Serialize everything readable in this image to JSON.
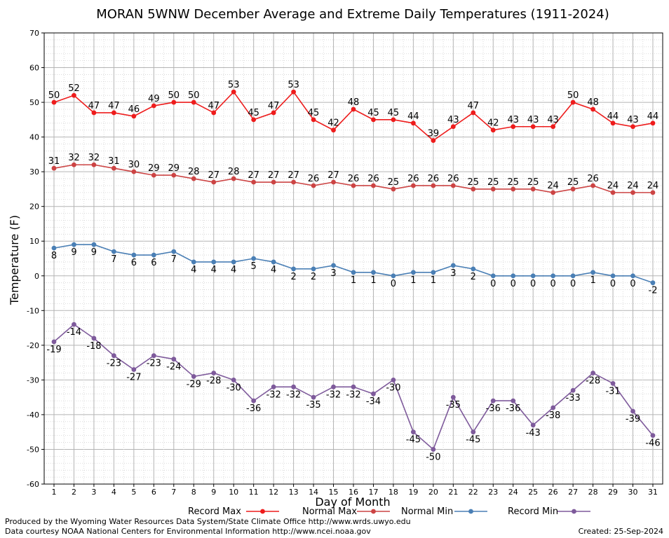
{
  "chart_data": {
    "type": "line",
    "title": "MORAN 5WNW December Average and Extreme Daily Temperatures (1911-2024)",
    "xlabel": "Day of Month",
    "ylabel": "Temperature (F)",
    "ylim": [
      -60,
      70
    ],
    "yticks": [
      -60,
      -50,
      -40,
      -30,
      -20,
      -10,
      0,
      10,
      20,
      30,
      40,
      50,
      60,
      70
    ],
    "x": [
      1,
      2,
      3,
      4,
      5,
      6,
      7,
      8,
      9,
      10,
      11,
      12,
      13,
      14,
      15,
      16,
      17,
      18,
      19,
      20,
      21,
      22,
      23,
      24,
      25,
      26,
      27,
      28,
      29,
      30,
      31
    ],
    "grid": true,
    "legend": "bottom",
    "series": [
      {
        "name": "Record Max",
        "color": "#ee1c1c",
        "label_pos": "above",
        "values": [
          50,
          52,
          47,
          47,
          46,
          49,
          50,
          50,
          47,
          53,
          45,
          47,
          53,
          45,
          42,
          48,
          45,
          45,
          44,
          39,
          43,
          47,
          42,
          43,
          43,
          43,
          50,
          48,
          44,
          43,
          44
        ]
      },
      {
        "name": "Normal Max",
        "color": "#cc4444",
        "label_pos": "above",
        "values": [
          31,
          32,
          32,
          31,
          30,
          29,
          29,
          28,
          27,
          28,
          27,
          27,
          27,
          26,
          27,
          26,
          26,
          25,
          26,
          26,
          26,
          25,
          25,
          25,
          25,
          24,
          25,
          26,
          24,
          24,
          24
        ]
      },
      {
        "name": "Normal Min",
        "color": "#4a7fb5",
        "label_pos": "below",
        "values": [
          8,
          9,
          9,
          7,
          6,
          6,
          7,
          4,
          4,
          4,
          5,
          4,
          2,
          2,
          3,
          1,
          1,
          0,
          1,
          1,
          3,
          2,
          0,
          0,
          0,
          0,
          0,
          1,
          0,
          0,
          -2
        ]
      },
      {
        "name": "Record Min",
        "color": "#7e5a9b",
        "label_pos": "below",
        "values": [
          -19,
          -14,
          -18,
          -23,
          -27,
          -23,
          -24,
          -29,
          -28,
          -30,
          -36,
          -32,
          -32,
          -35,
          -32,
          -32,
          -34,
          -30,
          -45,
          -50,
          -35,
          -45,
          -36,
          -36,
          -43,
          -38,
          -33,
          -28,
          -31,
          -39,
          -46
        ]
      }
    ]
  },
  "footer": {
    "produced_by": "Produced by the Wyoming Water Resources Data System/State Climate Office http://www.wrds.uwyo.edu",
    "courtesy": "Data courtesy NOAA National Centers for Environmental Information http://www.ncei.noaa.gov",
    "created": "Created:  25-Sep-2024"
  }
}
